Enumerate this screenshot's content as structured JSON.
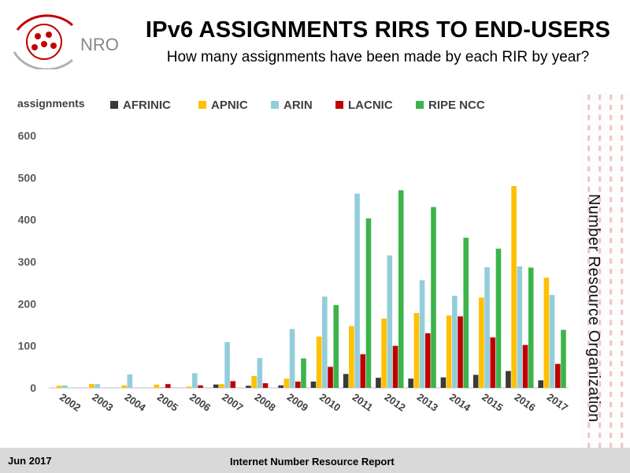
{
  "header": {
    "logo_text": "NRO",
    "title": "IPv6 ASSIGNMENTS RIRS TO END-USERS",
    "subtitle": "How many assignments have been made by each RIR by year?"
  },
  "sidebar": {
    "org_text": "Number Resource Organization"
  },
  "footer": {
    "date": "Jun 2017",
    "report": "Internet Number Resource Report"
  },
  "colors": {
    "AFRINIC": "#3a3a3a",
    "APNIC": "#ffc000",
    "ARIN": "#92cddc",
    "LACNIC": "#c00000",
    "RIPE NCC": "#3cb44b"
  },
  "chart_data": {
    "type": "bar",
    "ylabel": "assignments",
    "ylim": [
      0,
      600
    ],
    "yticks": [
      0,
      100,
      200,
      300,
      400,
      500,
      600
    ],
    "legend_position": "top",
    "categories": [
      "2002",
      "2003",
      "2004",
      "2005",
      "2006",
      "2007",
      "2008",
      "2009",
      "2010",
      "2011",
      "2012",
      "2013",
      "2014",
      "2015",
      "2016",
      "2017"
    ],
    "series": [
      {
        "name": "AFRINIC",
        "values": [
          0,
          0,
          0,
          0,
          0,
          8,
          5,
          6,
          15,
          33,
          24,
          22,
          25,
          31,
          40,
          18
        ]
      },
      {
        "name": "APNIC",
        "values": [
          5,
          9,
          6,
          8,
          3,
          9,
          28,
          22,
          122,
          147,
          165,
          178,
          172,
          215,
          480,
          262
        ]
      },
      {
        "name": "ARIN",
        "values": [
          6,
          9,
          32,
          2,
          35,
          109,
          71,
          140,
          217,
          462,
          315,
          256,
          219,
          287,
          289,
          221
        ]
      },
      {
        "name": "LACNIC",
        "values": [
          0,
          0,
          0,
          9,
          6,
          16,
          11,
          15,
          50,
          80,
          100,
          130,
          170,
          120,
          102,
          57
        ]
      },
      {
        "name": "RIPE NCC",
        "values": [
          0,
          0,
          0,
          0,
          0,
          0,
          0,
          70,
          197,
          403,
          470,
          430,
          357,
          331,
          286,
          138
        ]
      }
    ]
  }
}
